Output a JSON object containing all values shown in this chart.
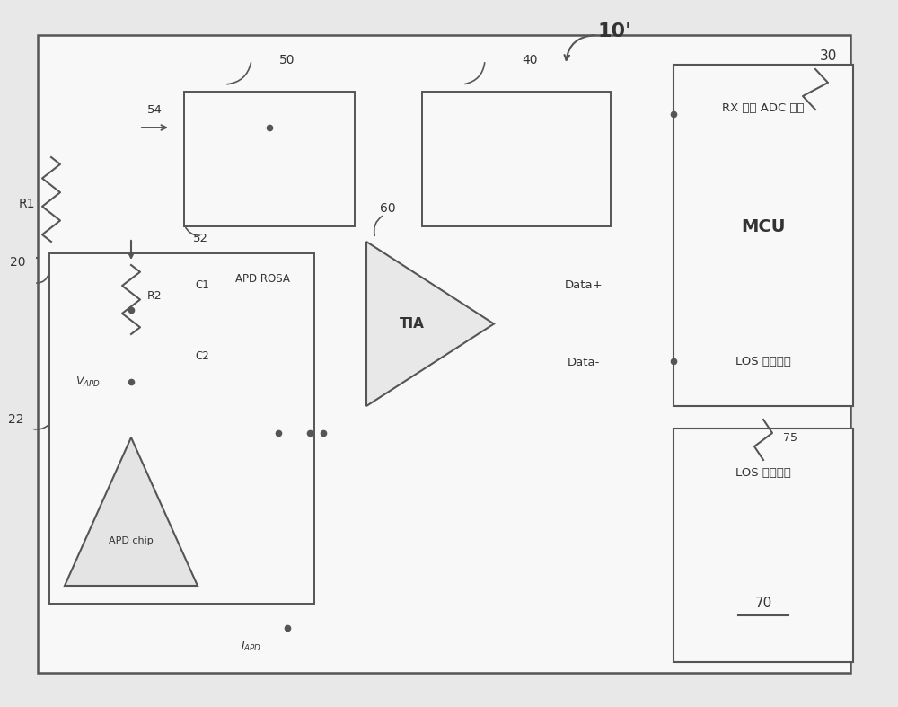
{
  "bg_color": "#e8e8e8",
  "line_color": "#555555",
  "box_fill": "#f8f8f8",
  "title": "10'",
  "label_30": "30",
  "label_40": "40",
  "label_50": "50",
  "label_54": "54",
  "label_52": "52",
  "label_20": "20",
  "label_22": "22",
  "label_60": "60",
  "label_70": "70",
  "label_75": "75",
  "mcu_line1": "RX 功率 ADC 输入",
  "mcu_line2": "MCU",
  "mcu_line3": "LOS 信号输入",
  "los_out_text": "LOS 信号输出",
  "apd_rosa": "APD ROSA",
  "apd_chip": "APD chip",
  "r1": "R1",
  "r2": "R2",
  "c1": "C1",
  "c2": "C2",
  "tia": "TIA",
  "data_plus": "Data+",
  "data_minus": "Data-"
}
